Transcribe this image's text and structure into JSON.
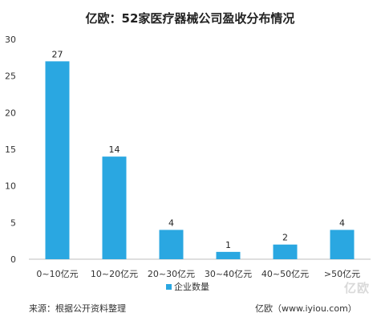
{
  "chart_data": {
    "type": "bar",
    "title": "亿欧：52家医疗器械公司盈收分布情况",
    "categories": [
      "0~10亿元",
      "10~20亿元",
      "20~30亿元",
      "30~40亿元",
      "40~50亿元",
      ">50亿元"
    ],
    "series": [
      {
        "name": "企业数量",
        "values": [
          27,
          14,
          4,
          1,
          2,
          4
        ],
        "color": "#2aa7e1"
      }
    ],
    "ylim": [
      0,
      30
    ],
    "yticks": [
      0,
      5,
      10,
      15,
      20,
      25,
      30
    ],
    "data_labels": true,
    "grid": false,
    "legend_position": "bottom"
  },
  "footer": {
    "source": "来源：根据公开资料整理",
    "credit": "亿欧（www.iyiou.com）"
  },
  "watermark": "亿欧"
}
